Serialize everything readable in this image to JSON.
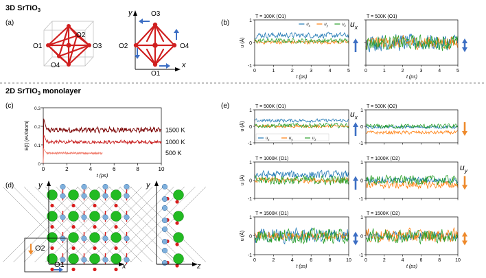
{
  "sections": {
    "top": {
      "title": "3D SrTiO",
      "sub": "3"
    },
    "bottom": {
      "title": "2D SrTiO",
      "sub": "3",
      "suffix": " monolayer"
    }
  },
  "panel_labels": [
    "(a)",
    "(b)",
    "(c)",
    "(d)",
    "(e)"
  ],
  "colors": {
    "ux": "#1f77b4",
    "uy": "#ff7f0e",
    "uz": "#2ca02c",
    "arrow_blue": "#3d6fc4",
    "arrow_orange": "#ee8a2c",
    "octa_red": "#d02020",
    "sr_green": "#22bb22",
    "ti_blue": "#7fb0dd",
    "o_red": "#d81c1c",
    "e1500": "#7a0000",
    "e1000": "#c81e1e",
    "e500": "#f08070"
  },
  "panel_a": {
    "left": {
      "atoms": [
        "O1",
        "O2",
        "O3",
        "O4"
      ]
    },
    "right": {
      "atoms": [
        "O3",
        "O2",
        "O4",
        "O1"
      ],
      "axes": [
        "y",
        "x"
      ]
    }
  },
  "panel_d": {
    "axes_left": [
      "y",
      "x"
    ],
    "axes_right": [
      "y",
      "z"
    ],
    "inset": [
      "O2",
      "O1"
    ]
  },
  "chart_data": [
    {
      "id": "c",
      "type": "line",
      "title": "",
      "xlabel": "t (ps)",
      "ylabel": "E(t) (eV/atom)",
      "xlim": [
        0,
        10
      ],
      "ylim": [
        0,
        0.3
      ],
      "xticks": [
        "0",
        "2",
        "4",
        "6",
        "8",
        "10"
      ],
      "yticks": [
        "0",
        "0.1",
        "0.2",
        "0.3"
      ],
      "series": [
        {
          "name": "1500 K",
          "level": 0.18,
          "amp": 0.012,
          "peak": 0.25,
          "x_end": 10
        },
        {
          "name": "1000 K",
          "level": 0.115,
          "amp": 0.008,
          "peak": 0.16,
          "x_end": 10
        },
        {
          "name": "500 K",
          "level": 0.055,
          "amp": 0.004,
          "peak": 0.08,
          "x_end": 5
        }
      ]
    },
    {
      "id": "b",
      "type": "line",
      "xlabel": "t (ps)",
      "ylabel": "u (Å)",
      "ylim": [
        -1,
        1
      ],
      "subplots": [
        {
          "title": "T = 100K (O1)",
          "xlim": [
            0,
            5
          ],
          "xticks": [
            "0",
            "1",
            "2",
            "3",
            "4",
            "5"
          ],
          "yticks": [
            "-1",
            "0",
            "1"
          ],
          "legend": [
            "u_x",
            "u_y",
            "u_z"
          ],
          "series": [
            {
              "name": "u_x",
              "mean": 0.32,
              "amp": 0.14
            },
            {
              "name": "u_y",
              "mean": 0.02,
              "amp": 0.1
            },
            {
              "name": "u_z",
              "mean": 0.08,
              "amp": 0.12
            }
          ],
          "arrow": {
            "label": "u_x",
            "dir": "up"
          }
        },
        {
          "title": "T = 500K (O1)",
          "xlim": [
            0,
            5
          ],
          "xticks": [
            "0",
            "1",
            "2",
            "3",
            "4",
            "5"
          ],
          "yticks": [],
          "series": [
            {
              "name": "u_x",
              "mean": 0.0,
              "amp": 0.42
            },
            {
              "name": "u_y",
              "mean": 0.0,
              "amp": 0.32
            },
            {
              "name": "u_z",
              "mean": 0.0,
              "amp": 0.38
            }
          ],
          "arrow": {
            "dir": "both"
          }
        }
      ]
    },
    {
      "id": "e",
      "type": "line",
      "xlabel": "t (ps)",
      "ylabel": "u (Å)",
      "ylim": [
        -1,
        1
      ],
      "subplots": [
        {
          "title": "T = 500K (O1)",
          "xlim": [
            0,
            10
          ],
          "xticks": [],
          "yticks": [
            "-1",
            "0",
            "1"
          ],
          "legend": [
            "u_x",
            "u_y",
            "u_z"
          ],
          "series": [
            {
              "name": "u_x",
              "mean": 0.35,
              "amp": 0.12
            },
            {
              "name": "u_y",
              "mean": 0.0,
              "amp": 0.1
            },
            {
              "name": "u_z",
              "mean": 0.05,
              "amp": 0.16
            }
          ],
          "arrow": {
            "label": "u_x",
            "dir": "up"
          }
        },
        {
          "title": "T = 500K (O2)",
          "xlim": [
            0,
            10
          ],
          "xticks": [],
          "yticks": [
            "-1",
            "0",
            "1"
          ],
          "series": [
            {
              "name": "u_x",
              "mean": -0.05,
              "amp": 0.1
            },
            {
              "name": "u_y",
              "mean": -0.38,
              "amp": 0.12
            },
            {
              "name": "u_z",
              "mean": 0.0,
              "amp": 0.16
            }
          ],
          "arrow": {
            "label": "u_y",
            "dir": "down"
          }
        },
        {
          "title": "T = 1000K (O1)",
          "xlim": [
            0,
            10
          ],
          "xticks": [],
          "yticks": [
            "-1",
            "0",
            "1"
          ],
          "series": [
            {
              "name": "u_x",
              "mean": 0.3,
              "amp": 0.25
            },
            {
              "name": "u_y",
              "mean": 0.0,
              "amp": 0.18
            },
            {
              "name": "u_z",
              "mean": 0.0,
              "amp": 0.3
            }
          ],
          "arrow": {
            "dir": "up"
          }
        },
        {
          "title": "T = 1000K (O2)",
          "xlim": [
            0,
            10
          ],
          "xticks": [],
          "yticks": [
            "-1",
            "0",
            "1"
          ],
          "series": [
            {
              "name": "u_x",
              "mean": 0.0,
              "amp": 0.18
            },
            {
              "name": "u_y",
              "mean": -0.25,
              "amp": 0.25
            },
            {
              "name": "u_z",
              "mean": 0.0,
              "amp": 0.3
            }
          ],
          "arrow": {
            "dir": "down"
          }
        },
        {
          "title": "T = 1500K (O1)",
          "xlim": [
            0,
            10
          ],
          "xticks": [
            "0",
            "2",
            "4",
            "6",
            "8",
            "10"
          ],
          "yticks": [
            "-1",
            "0",
            "1"
          ],
          "series": [
            {
              "name": "u_x",
              "mean": 0.0,
              "amp": 0.45
            },
            {
              "name": "u_y",
              "mean": 0.0,
              "amp": 0.25
            },
            {
              "name": "u_z",
              "mean": 0.0,
              "amp": 0.45
            }
          ],
          "arrow": {
            "dir": "both"
          }
        },
        {
          "title": "T = 1500K (O2)",
          "xlim": [
            0,
            10
          ],
          "xticks": [
            "0",
            "2",
            "4",
            "6",
            "8",
            "10"
          ],
          "yticks": [
            "-1",
            "0",
            "1"
          ],
          "series": [
            {
              "name": "u_x",
              "mean": 0.0,
              "amp": 0.25
            },
            {
              "name": "u_y",
              "mean": 0.0,
              "amp": 0.42
            },
            {
              "name": "u_z",
              "mean": 0.0,
              "amp": 0.42
            }
          ],
          "arrow": {
            "dir": "both"
          }
        }
      ]
    }
  ]
}
